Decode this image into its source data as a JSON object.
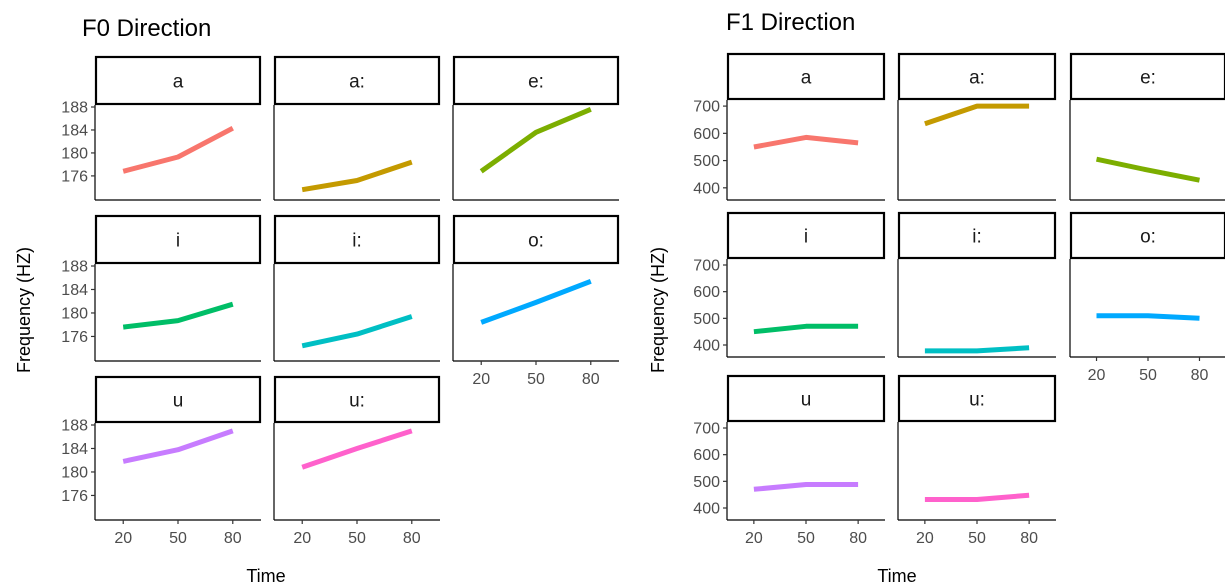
{
  "chart_data": [
    {
      "type": "line",
      "title": "F0 Direction",
      "xlabel": "Time",
      "ylabel": "Frequency (HZ)",
      "x": [
        20,
        50,
        80
      ],
      "xticks": [
        "20",
        "50",
        "80"
      ],
      "yticks": [
        176,
        180,
        184,
        188
      ],
      "ylim": [
        172.5,
        188
      ],
      "grid": false,
      "legend": "none",
      "series": [
        {
          "name": "a",
          "color": "#F8766D",
          "values": [
            176.8,
            179.3,
            184.3
          ]
        },
        {
          "name": "a:",
          "color": "#C49A00",
          "values": [
            173.6,
            175.2,
            178.4
          ]
        },
        {
          "name": "e:",
          "color": "#7CAE00",
          "values": [
            176.8,
            183.6,
            187.6
          ]
        },
        {
          "name": "i",
          "color": "#00BE67",
          "values": [
            177.6,
            178.7,
            181.5
          ]
        },
        {
          "name": "i:",
          "color": "#00BFC4",
          "values": [
            174.4,
            176.4,
            179.4
          ]
        },
        {
          "name": "o:",
          "color": "#00A9FF",
          "values": [
            178.4,
            181.8,
            185.4
          ]
        },
        {
          "name": "u",
          "color": "#C77CFF",
          "values": [
            181.8,
            183.8,
            187.0
          ]
        },
        {
          "name": "u:",
          "color": "#FF61CC",
          "values": [
            180.8,
            184.0,
            187.0
          ]
        }
      ]
    },
    {
      "type": "line",
      "title": "F1 Direction",
      "xlabel": "Time",
      "ylabel": "Frequency (HZ)",
      "x": [
        20,
        50,
        80
      ],
      "xticks": [
        "20",
        "50",
        "80"
      ],
      "yticks": [
        400,
        500,
        600,
        700
      ],
      "ylim": [
        370,
        715
      ],
      "grid": false,
      "legend": "none",
      "series": [
        {
          "name": "a",
          "color": "#F8766D",
          "values": [
            550,
            585,
            565
          ]
        },
        {
          "name": "a:",
          "color": "#C49A00",
          "values": [
            635,
            700,
            700
          ]
        },
        {
          "name": "e:",
          "color": "#7CAE00",
          "values": [
            505,
            465,
            428
          ]
        },
        {
          "name": "i",
          "color": "#00BE67",
          "values": [
            450,
            470,
            470
          ]
        },
        {
          "name": "i:",
          "color": "#00BFC4",
          "values": [
            378,
            378,
            390
          ]
        },
        {
          "name": "o:",
          "color": "#00A9FF",
          "values": [
            510,
            510,
            500
          ]
        },
        {
          "name": "u",
          "color": "#C77CFF",
          "values": [
            470,
            488,
            488
          ]
        },
        {
          "name": "u:",
          "color": "#FF61CC",
          "values": [
            432,
            432,
            448
          ]
        }
      ]
    }
  ]
}
